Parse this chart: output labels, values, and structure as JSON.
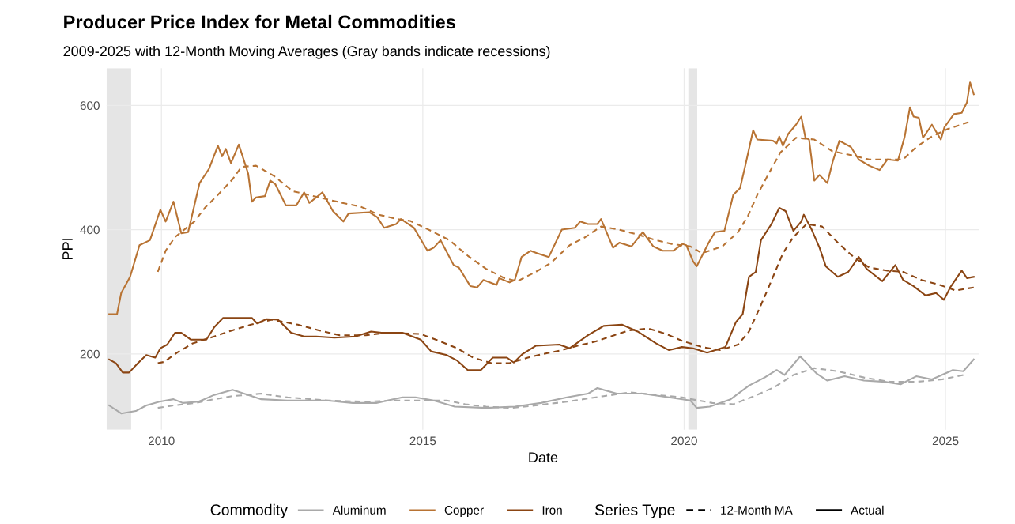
{
  "chart_data": {
    "type": "line",
    "title": "Producer Price Index for Metal Commodities",
    "subtitle": "2009-2025 with 12-Month Moving Averages (Gray bands indicate recessions)",
    "xlabel": "Date",
    "ylabel": "PPI",
    "legend_title": [
      "Commodity",
      "Series Type"
    ],
    "annotations": [
      "12-Month MA",
      "Actual"
    ],
    "xlim": [
      2008.95,
      2025.65
    ],
    "xticks": [
      2010,
      2015,
      2020,
      2025
    ],
    "ylim": [
      78,
      660
    ],
    "yticks": [
      200,
      400,
      600
    ],
    "grid": true,
    "legend": "bottom",
    "bands": [
      {
        "axis": "x",
        "from": 2008.95,
        "to": 2009.42,
        "color": "#e5e5e5"
      },
      {
        "axis": "x",
        "from": 2020.08,
        "to": 2020.25,
        "color": "#e5e5e5"
      }
    ],
    "series": [
      {
        "color": "#a9a9a9",
        "line_style": "dashed",
        "x": [
          2009.93,
          2010.23,
          2010.66,
          2011.01,
          2011.36,
          2011.91,
          2012.41,
          2013.16,
          2013.91,
          2014.41,
          2014.76,
          2015.46,
          2015.81,
          2016.21,
          2016.71,
          2017.16,
          2017.76,
          2018.46,
          2018.96,
          2019.46,
          2019.96,
          2020.14,
          2020.54,
          2020.94,
          2021.34,
          2021.74,
          2022.09,
          2022.49,
          2022.94,
          2023.44,
          2023.94,
          2024.44,
          2024.94,
          2025.34
        ],
        "values": [
          113,
          117,
          121,
          127,
          132,
          136,
          130,
          125,
          123,
          125,
          125,
          125,
          119,
          115,
          113,
          117,
          123,
          132,
          138,
          134,
          130,
          127,
          121,
          119,
          132,
          147,
          166,
          177,
          172,
          162,
          155,
          155,
          159,
          166
        ]
      },
      {
        "color": "#b87333",
        "line_style": "dashed",
        "x": [
          2009.93,
          2010.08,
          2010.26,
          2010.51,
          2010.63,
          2010.83,
          2011.08,
          2011.36,
          2011.53,
          2011.81,
          2012.16,
          2012.51,
          2012.81,
          2013.16,
          2013.46,
          2013.81,
          2014.16,
          2014.51,
          2014.76,
          2015.16,
          2015.51,
          2015.86,
          2016.21,
          2016.56,
          2016.81,
          2017.16,
          2017.46,
          2017.81,
          2018.11,
          2018.41,
          2018.76,
          2019.11,
          2019.46,
          2019.76,
          2020.12,
          2020.34,
          2020.73,
          2021.03,
          2021.22,
          2021.4,
          2021.59,
          2021.84,
          2022.14,
          2022.49,
          2022.84,
          2023.19,
          2023.54,
          2023.89,
          2024.19,
          2024.44,
          2024.74,
          2025.04,
          2025.44
        ],
        "values": [
          332,
          366,
          388,
          405,
          413,
          435,
          456,
          481,
          501,
          503,
          486,
          462,
          456,
          449,
          443,
          437,
          424,
          417,
          414,
          398,
          383,
          358,
          337,
          322,
          317,
          332,
          347,
          375,
          388,
          405,
          400,
          392,
          383,
          377,
          373,
          362,
          373,
          396,
          422,
          456,
          486,
          524,
          548,
          545,
          526,
          520,
          513,
          513,
          513,
          533,
          550,
          562,
          573
        ]
      },
      {
        "color": "#8b4513",
        "line_style": "dashed",
        "x": [
          2009.93,
          2010.05,
          2010.3,
          2010.6,
          2011.01,
          2011.36,
          2011.71,
          2012.11,
          2012.61,
          2013.01,
          2013.41,
          2013.91,
          2014.31,
          2014.96,
          2015.31,
          2015.66,
          2015.96,
          2016.31,
          2016.66,
          2017.01,
          2017.31,
          2017.66,
          2017.96,
          2018.31,
          2018.66,
          2018.96,
          2019.31,
          2019.66,
          2019.96,
          2020.34,
          2020.69,
          2021.03,
          2021.24,
          2021.44,
          2021.59,
          2021.74,
          2021.89,
          2022.09,
          2022.34,
          2022.64,
          2022.94,
          2023.24,
          2023.54,
          2023.89,
          2024.19,
          2024.54,
          2024.89,
          2025.19,
          2025.54
        ],
        "values": [
          185,
          187,
          202,
          217,
          228,
          238,
          247,
          255,
          247,
          238,
          230,
          230,
          234,
          232,
          221,
          209,
          194,
          185,
          185,
          194,
          200,
          206,
          213,
          220,
          230,
          238,
          241,
          232,
          221,
          211,
          206,
          215,
          236,
          273,
          302,
          332,
          362,
          388,
          409,
          405,
          379,
          356,
          339,
          334,
          332,
          319,
          311,
          302,
          307
        ]
      },
      {
        "name": "Aluminum",
        "color": "#a9a9a9",
        "line_style": "solid",
        "x": [
          2009.0,
          2009.23,
          2009.51,
          2009.71,
          2009.96,
          2010.23,
          2010.41,
          2010.71,
          2011.01,
          2011.36,
          2011.66,
          2011.91,
          2012.41,
          2013.16,
          2013.66,
          2014.11,
          2014.61,
          2014.86,
          2015.21,
          2015.61,
          2016.21,
          2016.76,
          2017.26,
          2017.76,
          2018.16,
          2018.34,
          2018.71,
          2019.21,
          2019.71,
          2020.12,
          2020.24,
          2020.49,
          2020.89,
          2021.24,
          2021.54,
          2021.77,
          2021.92,
          2022.22,
          2022.54,
          2022.74,
          2023.07,
          2023.44,
          2023.84,
          2024.14,
          2024.44,
          2024.74,
          2025.14,
          2025.34,
          2025.54
        ],
        "values": [
          117,
          104,
          108,
          117,
          123,
          127,
          121,
          123,
          134,
          142,
          134,
          127,
          125,
          125,
          121,
          121,
          130,
          130,
          125,
          115,
          113,
          115,
          121,
          130,
          136,
          145,
          136,
          136,
          130,
          125,
          113,
          115,
          127,
          149,
          162,
          174,
          166,
          196,
          168,
          157,
          164,
          157,
          155,
          151,
          164,
          159,
          174,
          172,
          191
        ]
      },
      {
        "name": "Copper",
        "color": "#b87333",
        "line_style": "solid",
        "x": [
          2009.0,
          2009.15,
          2009.23,
          2009.4,
          2009.58,
          2009.78,
          2009.98,
          2010.08,
          2010.23,
          2010.38,
          2010.51,
          2010.73,
          2010.91,
          2011.08,
          2011.16,
          2011.23,
          2011.33,
          2011.48,
          2011.66,
          2011.73,
          2011.81,
          2011.98,
          2012.08,
          2012.18,
          2012.38,
          2012.58,
          2012.73,
          2012.83,
          2013.08,
          2013.28,
          2013.48,
          2013.58,
          2013.98,
          2014.13,
          2014.26,
          2014.49,
          2014.58,
          2014.83,
          2015.09,
          2015.21,
          2015.34,
          2015.59,
          2015.69,
          2015.91,
          2016.04,
          2016.16,
          2016.41,
          2016.46,
          2016.66,
          2016.76,
          2016.89,
          2017.06,
          2017.19,
          2017.41,
          2017.66,
          2017.91,
          2018.01,
          2018.16,
          2018.34,
          2018.41,
          2018.64,
          2018.76,
          2018.99,
          2019.21,
          2019.41,
          2019.59,
          2019.79,
          2019.97,
          2020.04,
          2020.17,
          2020.24,
          2020.47,
          2020.59,
          2020.77,
          2020.94,
          2021.07,
          2021.17,
          2021.32,
          2021.4,
          2021.7,
          2021.77,
          2021.82,
          2021.89,
          2021.99,
          2022.14,
          2022.24,
          2022.32,
          2022.39,
          2022.49,
          2022.59,
          2022.74,
          2022.84,
          2022.97,
          2023.19,
          2023.34,
          2023.54,
          2023.74,
          2023.89,
          2024.09,
          2024.22,
          2024.32,
          2024.39,
          2024.49,
          2024.57,
          2024.74,
          2024.91,
          2024.98,
          2025.16,
          2025.31,
          2025.41,
          2025.47,
          2025.54
        ],
        "values": [
          264,
          264,
          298,
          324,
          375,
          383,
          432,
          413,
          445,
          394,
          396,
          475,
          498,
          535,
          518,
          530,
          507,
          537,
          490,
          445,
          452,
          454,
          479,
          473,
          439,
          439,
          460,
          443,
          460,
          430,
          413,
          426,
          428,
          420,
          403,
          409,
          417,
          403,
          366,
          371,
          383,
          343,
          339,
          309,
          307,
          319,
          311,
          322,
          315,
          319,
          356,
          366,
          362,
          356,
          400,
          403,
          413,
          409,
          409,
          417,
          371,
          379,
          373,
          396,
          373,
          366,
          366,
          377,
          375,
          349,
          341,
          379,
          396,
          398,
          456,
          467,
          503,
          560,
          545,
          543,
          539,
          550,
          535,
          554,
          569,
          582,
          548,
          545,
          479,
          488,
          475,
          509,
          543,
          533,
          513,
          503,
          496,
          513,
          511,
          550,
          597,
          582,
          580,
          548,
          569,
          545,
          565,
          586,
          588,
          605,
          637,
          618
        ]
      },
      {
        "name": "Iron",
        "color": "#8b4513",
        "line_style": "solid",
        "x": [
          2009.0,
          2009.13,
          2009.26,
          2009.38,
          2009.55,
          2009.71,
          2009.88,
          2009.98,
          2010.11,
          2010.26,
          2010.38,
          2010.56,
          2010.86,
          2011.01,
          2011.18,
          2011.73,
          2011.83,
          2012.01,
          2012.23,
          2012.48,
          2012.73,
          2012.96,
          2013.31,
          2013.71,
          2014.01,
          2014.21,
          2014.61,
          2014.96,
          2015.16,
          2015.46,
          2015.66,
          2015.86,
          2016.11,
          2016.34,
          2016.61,
          2016.74,
          2016.91,
          2017.16,
          2017.61,
          2017.81,
          2018.16,
          2018.46,
          2018.81,
          2019.11,
          2019.46,
          2019.71,
          2019.96,
          2020.17,
          2020.44,
          2020.79,
          2020.99,
          2021.12,
          2021.24,
          2021.37,
          2021.47,
          2021.67,
          2021.82,
          2021.94,
          2022.09,
          2022.24,
          2022.29,
          2022.44,
          2022.59,
          2022.71,
          2022.94,
          2023.14,
          2023.34,
          2023.49,
          2023.79,
          2024.04,
          2024.19,
          2024.39,
          2024.62,
          2024.82,
          2024.97,
          2025.09,
          2025.31,
          2025.41,
          2025.54
        ],
        "values": [
          191,
          185,
          170,
          170,
          185,
          198,
          194,
          209,
          215,
          234,
          234,
          223,
          223,
          243,
          258,
          258,
          249,
          256,
          255,
          234,
          228,
          228,
          226,
          228,
          236,
          234,
          234,
          223,
          204,
          198,
          189,
          174,
          174,
          194,
          194,
          186,
          200,
          213,
          215,
          209,
          230,
          245,
          247,
          236,
          217,
          206,
          211,
          209,
          202,
          211,
          251,
          264,
          324,
          332,
          383,
          409,
          435,
          430,
          398,
          413,
          424,
          400,
          371,
          341,
          324,
          332,
          356,
          337,
          317,
          343,
          319,
          309,
          294,
          298,
          287,
          307,
          334,
          322,
          324
        ]
      }
    ]
  }
}
